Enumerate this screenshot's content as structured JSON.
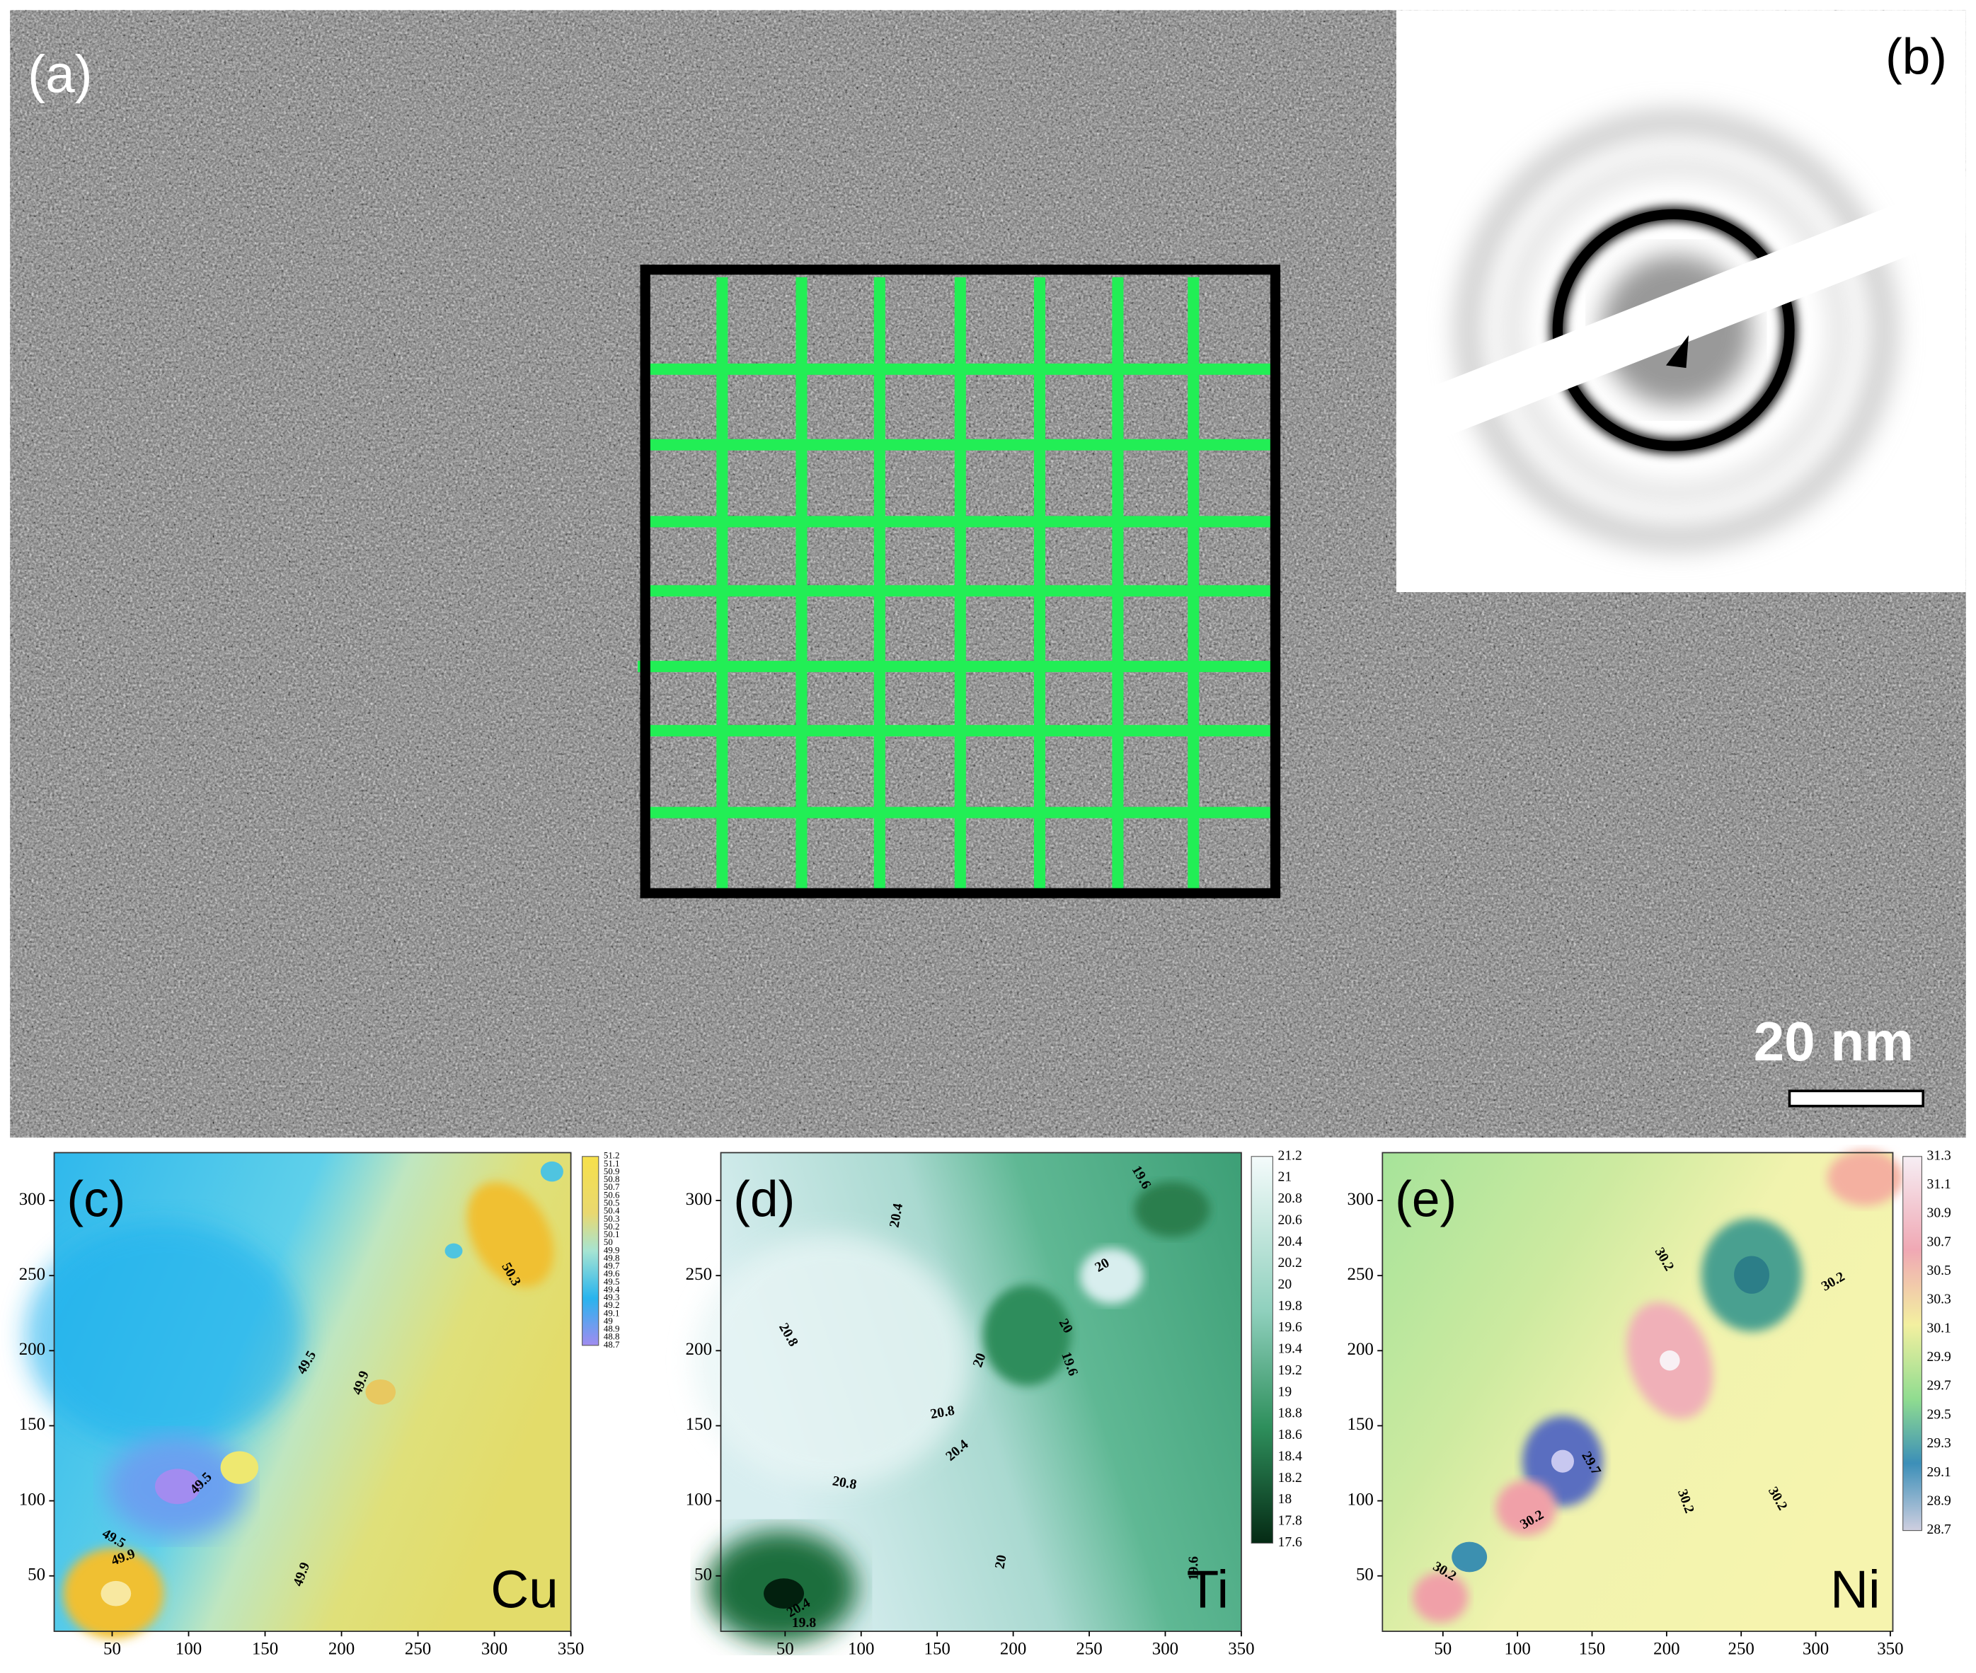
{
  "panels": {
    "a": {
      "label": "(a)",
      "scale_bar": "20 nm"
    },
    "b": {
      "label": "(b)"
    },
    "c": {
      "label": "(c)",
      "element": "Cu",
      "xticks": [
        50,
        100,
        150,
        200,
        250,
        300,
        350
      ],
      "yticks": [
        50,
        100,
        150,
        200,
        250,
        300
      ],
      "colorbar": [
        "51.2",
        "51.1",
        "50.9",
        "50.8",
        "50.7",
        "50.6",
        "50.5",
        "50.4",
        "50.3",
        "50.2",
        "50.1",
        "50",
        "49.9",
        "49.8",
        "49.7",
        "49.6",
        "49.5",
        "49.4",
        "49.3",
        "49.2",
        "49.1",
        "49",
        "48.9",
        "48.8",
        "48.7"
      ],
      "contour_labels": [
        "50.3",
        "49.5",
        "49.9",
        "49.5",
        "49.5",
        "49.9",
        "49.9"
      ]
    },
    "d": {
      "label": "(d)",
      "element": "Ti",
      "xticks": [
        50,
        100,
        150,
        200,
        250,
        300,
        350
      ],
      "yticks": [
        50,
        100,
        150,
        200,
        250,
        300
      ],
      "colorbar": [
        "21.2",
        "21",
        "20.8",
        "20.6",
        "20.4",
        "20.2",
        "20",
        "19.8",
        "19.6",
        "19.4",
        "19.2",
        "19",
        "18.8",
        "18.6",
        "18.4",
        "18.2",
        "18",
        "17.8",
        "17.6"
      ],
      "contour_labels": [
        "20.4",
        "20.8",
        "20",
        "19.6",
        "20",
        "19.6",
        "20",
        "20.8",
        "20.4",
        "20.8",
        "20",
        "19.6",
        "20.4",
        "19.8"
      ]
    },
    "e": {
      "label": "(e)",
      "element": "Ni",
      "xticks": [
        50,
        100,
        150,
        200,
        250,
        300,
        350
      ],
      "yticks": [
        50,
        100,
        150,
        200,
        250,
        300
      ],
      "colorbar": [
        "31.3",
        "31.1",
        "30.9",
        "30.7",
        "30.5",
        "30.3",
        "30.1",
        "29.9",
        "29.7",
        "29.5",
        "29.3",
        "29.1",
        "28.9",
        "28.7"
      ],
      "contour_labels": [
        "30.2",
        "30.2",
        "30.2",
        "30.2",
        "29.7",
        "30.2",
        "30.2"
      ]
    }
  }
}
